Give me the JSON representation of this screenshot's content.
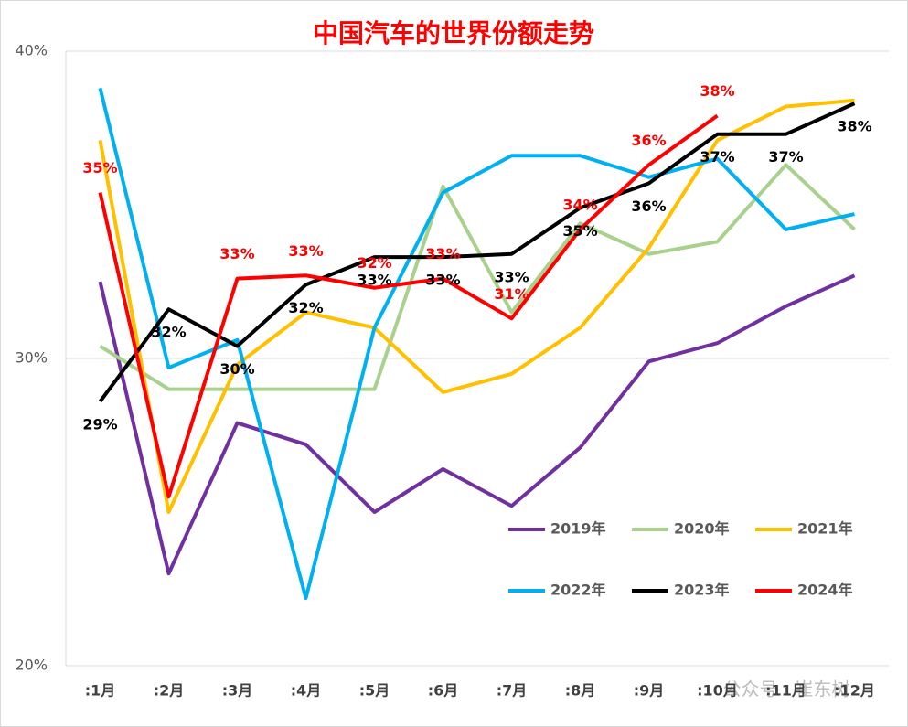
{
  "chart_data": {
    "type": "line",
    "title": "中国汽车的世界份额走势",
    "categories": [
      ":1月",
      ":2月",
      ":3月",
      ":4月",
      ":5月",
      ":6月",
      ":7月",
      ":8月",
      ":9月",
      ":10月",
      ":11月",
      ":12月"
    ],
    "ylim": [
      20,
      40
    ],
    "yticks": [
      {
        "value": 20,
        "label": "20%"
      },
      {
        "value": 30,
        "label": "30%"
      },
      {
        "value": 40,
        "label": "40%"
      }
    ],
    "grid": true,
    "series": [
      {
        "name": "2019年",
        "color": "#7030a0",
        "values": [
          32.5,
          23.0,
          27.9,
          27.2,
          25.0,
          26.4,
          25.2,
          27.1,
          29.9,
          30.5,
          31.7,
          32.7
        ]
      },
      {
        "name": "2020年",
        "color": "#a9d18e",
        "values": [
          30.4,
          29.0,
          29.0,
          29.0,
          29.0,
          35.6,
          31.5,
          34.4,
          33.4,
          33.8,
          36.3,
          34.2
        ]
      },
      {
        "name": "2021年",
        "color": "#ffc000",
        "values": [
          37.1,
          25.0,
          29.8,
          31.5,
          31.0,
          28.9,
          29.5,
          31.0,
          33.6,
          37.1,
          38.2,
          38.4
        ]
      },
      {
        "name": "2022年",
        "color": "#00b0f0",
        "values": [
          38.8,
          29.7,
          30.6,
          22.2,
          31.0,
          35.4,
          36.6,
          36.6,
          35.9,
          36.5,
          34.2,
          34.7
        ]
      },
      {
        "name": "2023年",
        "color": "#000000",
        "values": [
          28.6,
          31.6,
          30.4,
          32.4,
          33.3,
          33.3,
          33.4,
          34.9,
          35.7,
          37.3,
          37.3,
          38.3
        ],
        "value_labels": [
          "29%",
          "32%",
          "30%",
          "32%",
          "33%",
          "33%",
          "33%",
          "35%",
          "36%",
          "37%",
          "37%",
          "38%"
        ]
      },
      {
        "name": "2024年",
        "color": "#ff0000",
        "values": [
          35.4,
          25.5,
          32.6,
          32.7,
          32.3,
          32.6,
          31.3,
          34.2,
          36.3,
          37.9,
          null,
          null
        ],
        "value_labels": [
          "35%",
          null,
          "33%",
          "33%",
          "32%",
          "33%",
          "31%",
          "34%",
          "36%",
          "38%",
          null,
          null
        ]
      }
    ],
    "watermark": "公众号 · 崔东树"
  }
}
